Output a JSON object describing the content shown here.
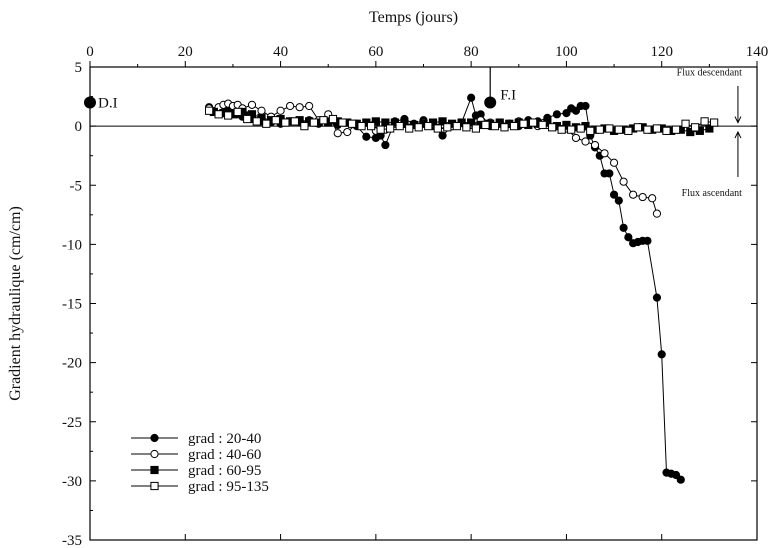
{
  "chart_data": {
    "type": "line",
    "xlabel": "Temps (jours)",
    "ylabel": "Gradient hydraulique (cm/cm)",
    "xlim": [
      0,
      140
    ],
    "ylim": [
      -35,
      5
    ],
    "xticks": [
      0,
      20,
      40,
      60,
      80,
      100,
      120,
      140
    ],
    "yticks": [
      5,
      0,
      -5,
      -10,
      -15,
      -20,
      -25,
      -30,
      -35
    ],
    "x_axis_position": "top",
    "grid": false,
    "legend_position": "bottom-left",
    "reference_line_y": 0,
    "annotations": [
      {
        "text": "D.I",
        "x": 0,
        "y": 2
      },
      {
        "text": "F.I",
        "x": 84,
        "y": 2
      },
      {
        "text": "Flux descendant",
        "direction": "down"
      },
      {
        "text": "Flux ascendant",
        "direction": "up"
      }
    ],
    "series": [
      {
        "name": "grad : 20-40",
        "marker": "filled-circle",
        "x": [
          25,
          27,
          28,
          29,
          30,
          31,
          32,
          33,
          34,
          36,
          38,
          40,
          42,
          44,
          46,
          48,
          50,
          52,
          54,
          56,
          58,
          60,
          61,
          62,
          64,
          66,
          68,
          70,
          72,
          74,
          76,
          78,
          80,
          81,
          82,
          84,
          86,
          88,
          90,
          92,
          94,
          96,
          98,
          100,
          101,
          102,
          103,
          104,
          105,
          106,
          107,
          108,
          109,
          110,
          111,
          112,
          113,
          114,
          115,
          116,
          117,
          119,
          120,
          121,
          122,
          123,
          124
        ],
        "values": [
          1.6,
          1.5,
          1.4,
          1.3,
          1.2,
          1.0,
          0.8,
          0.9,
          0.6,
          0.4,
          0.3,
          0.2,
          0.4,
          0.3,
          0.5,
          0.2,
          0.4,
          0.1,
          0.3,
          0.0,
          -0.9,
          -1.0,
          -0.8,
          -1.6,
          0.4,
          0.6,
          0.2,
          0.5,
          0.0,
          -0.8,
          0.0,
          0.3,
          2.4,
          0.9,
          1.0,
          0.0,
          0.2,
          0.2,
          0.0,
          0.5,
          0.4,
          0.7,
          1.0,
          1.1,
          1.5,
          1.3,
          1.7,
          1.7,
          -0.8,
          -1.8,
          -2.5,
          -4.0,
          -4.0,
          -5.8,
          -6.3,
          -8.6,
          -9.4,
          -9.9,
          -9.8,
          -9.7,
          -9.7,
          -14.5,
          -19.3,
          -29.3,
          -29.4,
          -29.5,
          -29.9
        ]
      },
      {
        "name": "grad : 40-60",
        "marker": "open-circle",
        "x": [
          25,
          27,
          28,
          29,
          30,
          31,
          32,
          34,
          36,
          38,
          40,
          42,
          44,
          46,
          48,
          50,
          52,
          54,
          56,
          58,
          60,
          62,
          64,
          66,
          68,
          70,
          72,
          74,
          76,
          78,
          80,
          82,
          84,
          86,
          88,
          90,
          92,
          94,
          96,
          98,
          100,
          102,
          104,
          106,
          108,
          110,
          112,
          114,
          116,
          118,
          119
        ],
        "values": [
          1.5,
          1.6,
          1.8,
          1.9,
          1.7,
          1.8,
          1.5,
          1.8,
          1.3,
          0.8,
          1.3,
          1.7,
          1.6,
          1.7,
          0.5,
          1.0,
          -0.6,
          -0.5,
          0.2,
          0.3,
          -0.4,
          -0.3,
          0.0,
          0.2,
          0.1,
          0.3,
          0.2,
          0.1,
          0.0,
          0.3,
          0.1,
          0.5,
          0.3,
          0.3,
          0.2,
          0.4,
          0.1,
          0.0,
          0.1,
          0.0,
          -0.2,
          -1.0,
          -1.3,
          -1.6,
          -2.3,
          -3.1,
          -4.7,
          -5.8,
          -6.0,
          -6.1,
          -7.4
        ]
      },
      {
        "name": "grad : 60-95",
        "marker": "filled-square",
        "x": [
          26,
          28,
          30,
          32,
          34,
          36,
          38,
          40,
          42,
          44,
          46,
          48,
          50,
          52,
          54,
          56,
          58,
          60,
          62,
          64,
          66,
          68,
          70,
          72,
          74,
          76,
          78,
          80,
          82,
          84,
          86,
          88,
          90,
          92,
          94,
          96,
          98,
          100,
          102,
          104,
          106,
          108,
          110,
          112,
          114,
          116,
          118,
          120,
          122,
          124,
          126,
          128,
          130
        ],
        "values": [
          1.2,
          1.1,
          1.0,
          1.2,
          1.0,
          0.7,
          0.5,
          0.6,
          0.4,
          0.5,
          0.4,
          0.3,
          0.3,
          0.4,
          0.3,
          0.2,
          0.3,
          0.4,
          0.3,
          0.3,
          0.2,
          0.1,
          0.2,
          0.3,
          0.4,
          0.2,
          0.3,
          0.3,
          0.1,
          0.2,
          0.3,
          0.2,
          0.3,
          0.1,
          0.2,
          0.3,
          0.0,
          0.1,
          -0.1,
          0.0,
          -0.3,
          -0.2,
          -0.4,
          -0.3,
          -0.2,
          -0.1,
          -0.3,
          -0.2,
          -0.4,
          -0.3,
          -0.5,
          -0.4,
          -0.2
        ]
      },
      {
        "name": "grad : 95-135",
        "marker": "open-square",
        "x": [
          25,
          27,
          29,
          31,
          33,
          35,
          37,
          39,
          41,
          43,
          45,
          47,
          49,
          51,
          53,
          55,
          57,
          59,
          61,
          63,
          65,
          67,
          69,
          71,
          73,
          75,
          77,
          79,
          81,
          83,
          85,
          87,
          89,
          91,
          93,
          95,
          97,
          99,
          101,
          103,
          105,
          107,
          109,
          111,
          113,
          115,
          117,
          119,
          121,
          123,
          125,
          127,
          129,
          131
        ],
        "values": [
          1.3,
          1.0,
          0.9,
          1.2,
          0.6,
          0.4,
          0.2,
          0.5,
          0.3,
          0.4,
          0.0,
          0.3,
          0.5,
          0.6,
          0.3,
          0.2,
          0.0,
          0.0,
          -0.3,
          -0.2,
          0.0,
          -0.2,
          -0.1,
          0.0,
          -0.2,
          -0.1,
          0.0,
          -0.1,
          -0.2,
          0.1,
          0.0,
          -0.1,
          0.0,
          0.2,
          0.3,
          0.1,
          -0.1,
          -0.3,
          -0.3,
          -0.2,
          -0.4,
          -0.3,
          -0.2,
          -0.3,
          -0.4,
          -0.1,
          -0.3,
          -0.2,
          -0.4,
          -0.3,
          0.2,
          -0.1,
          0.4,
          0.3
        ]
      }
    ]
  }
}
